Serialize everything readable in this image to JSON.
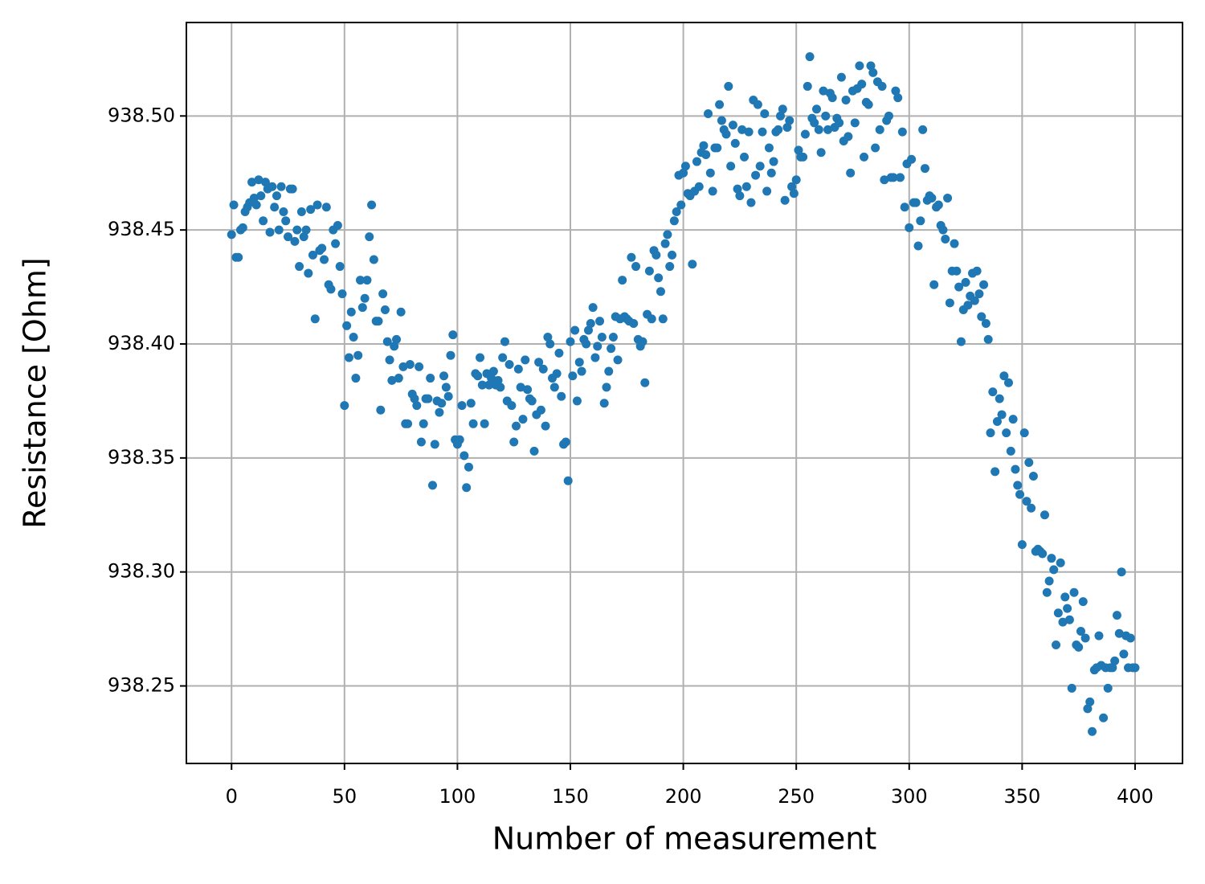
{
  "chart_data": {
    "type": "scatter",
    "x_label": "Number of measurement",
    "y_label": "Resistance [Ohm]",
    "color": "#1f77b4",
    "grid": true,
    "xlim": [
      -20,
      421
    ],
    "ylim": [
      938.216,
      938.541
    ],
    "xticks": [
      0,
      50,
      100,
      150,
      200,
      250,
      300,
      350,
      400
    ],
    "yticks": [
      938.25,
      {
        "value": 938.3,
        "label": "938.30"
      },
      938.35,
      {
        "value": 938.4,
        "label": "938.40"
      },
      938.45,
      {
        "value": 938.5,
        "label": "938.50"
      }
    ],
    "x": [
      0,
      1,
      2,
      3,
      4,
      5,
      6,
      7,
      8,
      9,
      10,
      11,
      12,
      13,
      14,
      15,
      16,
      17,
      18,
      19,
      20,
      21,
      22,
      23,
      24,
      25,
      26,
      27,
      28,
      29,
      30,
      31,
      32,
      33,
      34,
      35,
      36,
      37,
      38,
      39,
      40,
      41,
      42,
      43,
      44,
      45,
      46,
      47,
      48,
      49,
      50,
      51,
      52,
      53,
      54,
      55,
      56,
      57,
      58,
      59,
      60,
      61,
      62,
      63,
      64,
      65,
      66,
      67,
      68,
      69,
      70,
      71,
      72,
      73,
      74,
      75,
      76,
      77,
      78,
      79,
      80,
      81,
      82,
      83,
      84,
      85,
      86,
      87,
      88,
      89,
      90,
      91,
      92,
      93,
      94,
      95,
      96,
      97,
      98,
      99,
      100,
      101,
      102,
      103,
      104,
      105,
      106,
      107,
      108,
      109,
      110,
      111,
      112,
      113,
      114,
      115,
      116,
      117,
      118,
      119,
      120,
      121,
      122,
      123,
      124,
      125,
      126,
      127,
      128,
      129,
      130,
      131,
      132,
      133,
      134,
      135,
      136,
      137,
      138,
      139,
      140,
      141,
      142,
      143,
      144,
      145,
      146,
      147,
      148,
      149,
      150,
      151,
      152,
      153,
      154,
      155,
      156,
      157,
      158,
      159,
      160,
      161,
      162,
      163,
      164,
      165,
      166,
      167,
      168,
      169,
      170,
      171,
      172,
      173,
      174,
      175,
      176,
      177,
      178,
      179,
      180,
      181,
      182,
      183,
      184,
      185,
      186,
      187,
      188,
      189,
      190,
      191,
      192,
      193,
      194,
      195,
      196,
      197,
      198,
      199,
      200,
      201,
      202,
      203,
      204,
      205,
      206,
      207,
      208,
      209,
      210,
      211,
      212,
      213,
      214,
      215,
      216,
      217,
      218,
      219,
      220,
      221,
      222,
      223,
      224,
      225,
      226,
      227,
      228,
      229,
      230,
      231,
      232,
      233,
      234,
      235,
      236,
      237,
      238,
      239,
      240,
      241,
      242,
      243,
      244,
      245,
      246,
      247,
      248,
      249,
      250,
      251,
      252,
      253,
      254,
      255,
      256,
      257,
      258,
      259,
      260,
      261,
      262,
      263,
      264,
      265,
      266,
      267,
      268,
      269,
      270,
      271,
      272,
      273,
      274,
      275,
      276,
      277,
      278,
      279,
      280,
      281,
      282,
      283,
      284,
      285,
      286,
      287,
      288,
      289,
      290,
      291,
      292,
      293,
      294,
      295,
      296,
      297,
      298,
      299,
      300,
      301,
      302,
      303,
      304,
      305,
      306,
      307,
      308,
      309,
      310,
      311,
      312,
      313,
      314,
      315,
      316,
      317,
      318,
      319,
      320,
      321,
      322,
      323,
      324,
      325,
      326,
      327,
      328,
      329,
      330,
      331,
      332,
      333,
      334,
      335,
      336,
      337,
      338,
      339,
      340,
      341,
      342,
      343,
      344,
      345,
      346,
      347,
      348,
      349,
      350,
      351,
      352,
      353,
      354,
      355,
      356,
      357,
      358,
      359,
      360,
      361,
      362,
      363,
      364,
      365,
      366,
      367,
      368,
      369,
      370,
      371,
      372,
      373,
      374,
      375,
      376,
      377,
      378,
      379,
      380,
      381,
      382,
      383,
      384,
      385,
      386,
      387,
      388,
      389,
      390,
      391,
      392,
      393,
      394,
      395,
      396,
      397,
      398,
      399,
      400
    ],
    "values": [
      938.448,
      938.461,
      938.438,
      938.438,
      938.45,
      938.451,
      938.458,
      938.46,
      938.462,
      938.471,
      938.464,
      938.461,
      938.472,
      938.465,
      938.454,
      938.471,
      938.468,
      938.449,
      938.469,
      938.46,
      938.465,
      938.45,
      938.469,
      938.458,
      938.454,
      938.447,
      938.468,
      938.468,
      938.445,
      938.45,
      938.434,
      938.458,
      938.447,
      938.45,
      938.431,
      938.459,
      938.439,
      938.411,
      938.461,
      938.441,
      938.442,
      938.437,
      938.46,
      938.426,
      938.424,
      938.45,
      938.444,
      938.452,
      938.434,
      938.422,
      938.373,
      938.408,
      938.394,
      938.414,
      938.403,
      938.385,
      938.395,
      938.428,
      938.416,
      938.42,
      938.428,
      938.447,
      938.461,
      938.437,
      938.41,
      938.41,
      938.371,
      938.422,
      938.415,
      938.401,
      938.393,
      938.384,
      938.399,
      938.402,
      938.385,
      938.414,
      938.39,
      938.365,
      938.365,
      938.391,
      938.378,
      938.376,
      938.373,
      938.39,
      938.357,
      938.365,
      938.376,
      938.376,
      938.385,
      938.338,
      938.356,
      938.375,
      938.37,
      938.374,
      938.386,
      938.381,
      938.377,
      938.395,
      938.404,
      938.358,
      938.356,
      938.358,
      938.373,
      938.351,
      938.337,
      938.346,
      938.374,
      938.365,
      938.387,
      938.386,
      938.394,
      938.382,
      938.365,
      938.387,
      938.382,
      938.385,
      938.388,
      938.382,
      938.384,
      938.381,
      938.394,
      938.401,
      938.375,
      938.391,
      938.373,
      938.357,
      938.364,
      938.389,
      938.381,
      938.367,
      938.393,
      938.38,
      938.376,
      938.375,
      938.353,
      938.369,
      938.392,
      938.371,
      938.389,
      938.364,
      938.403,
      938.4,
      938.385,
      938.381,
      938.387,
      938.396,
      938.377,
      938.356,
      938.357,
      938.34,
      938.401,
      938.386,
      938.406,
      938.375,
      938.392,
      938.388,
      938.402,
      938.4,
      938.406,
      938.409,
      938.416,
      938.394,
      938.399,
      938.41,
      938.403,
      938.374,
      938.381,
      938.388,
      938.398,
      938.403,
      938.412,
      938.393,
      938.411,
      938.428,
      938.412,
      938.411,
      938.41,
      938.438,
      938.409,
      938.434,
      938.402,
      938.399,
      938.401,
      938.383,
      938.413,
      938.432,
      938.411,
      938.441,
      938.439,
      938.429,
      938.423,
      938.411,
      938.444,
      938.448,
      938.434,
      938.439,
      938.454,
      938.458,
      938.474,
      938.461,
      938.475,
      938.478,
      938.466,
      938.465,
      938.435,
      938.467,
      938.48,
      938.469,
      938.484,
      938.487,
      938.483,
      938.501,
      938.475,
      938.467,
      938.486,
      938.486,
      938.505,
      938.498,
      938.494,
      938.492,
      938.513,
      938.478,
      938.496,
      938.488,
      938.468,
      938.465,
      938.494,
      938.482,
      938.469,
      938.493,
      938.462,
      938.507,
      938.474,
      938.505,
      938.478,
      938.493,
      938.501,
      938.467,
      938.486,
      938.475,
      938.48,
      938.493,
      938.494,
      938.5,
      938.503,
      938.463,
      938.495,
      938.498,
      938.469,
      938.466,
      938.472,
      938.485,
      938.482,
      938.482,
      938.492,
      938.513,
      938.526,
      938.499,
      938.497,
      938.503,
      938.494,
      938.484,
      938.511,
      938.5,
      938.494,
      938.51,
      938.508,
      938.495,
      938.499,
      938.497,
      938.517,
      938.489,
      938.507,
      938.491,
      938.475,
      938.511,
      938.497,
      938.512,
      938.522,
      938.514,
      938.482,
      938.506,
      938.505,
      938.522,
      938.519,
      938.486,
      938.515,
      938.494,
      938.513,
      938.472,
      938.498,
      938.5,
      938.473,
      938.473,
      938.511,
      938.508,
      938.473,
      938.493,
      938.46,
      938.479,
      938.451,
      938.481,
      938.462,
      938.462,
      938.443,
      938.454,
      938.494,
      938.477,
      938.463,
      938.465,
      938.464,
      938.426,
      938.46,
      938.461,
      938.452,
      938.45,
      938.446,
      938.464,
      938.418,
      938.432,
      938.444,
      938.432,
      938.425,
      938.401,
      938.415,
      938.427,
      938.417,
      938.421,
      938.431,
      938.419,
      938.432,
      938.422,
      938.412,
      938.426,
      938.409,
      938.402,
      938.361,
      938.379,
      938.344,
      938.366,
      938.376,
      938.369,
      938.386,
      938.361,
      938.383,
      938.353,
      938.367,
      938.345,
      938.338,
      938.334,
      938.312,
      938.361,
      938.331,
      938.348,
      938.328,
      938.342,
      938.309,
      938.31,
      938.309,
      938.308,
      938.325,
      938.291,
      938.296,
      938.306,
      938.301,
      938.268,
      938.282,
      938.304,
      938.278,
      938.289,
      938.284,
      938.279,
      938.249,
      938.291,
      938.268,
      938.267,
      938.274,
      938.287,
      938.271,
      938.24,
      938.243,
      938.23,
      938.257,
      938.258,
      938.272,
      938.259,
      938.236,
      938.258,
      938.249,
      938.258,
      938.258,
      938.261,
      938.281,
      938.273,
      938.3,
      938.264,
      938.272,
      938.258,
      938.271,
      938.258,
      938.258
    ]
  }
}
